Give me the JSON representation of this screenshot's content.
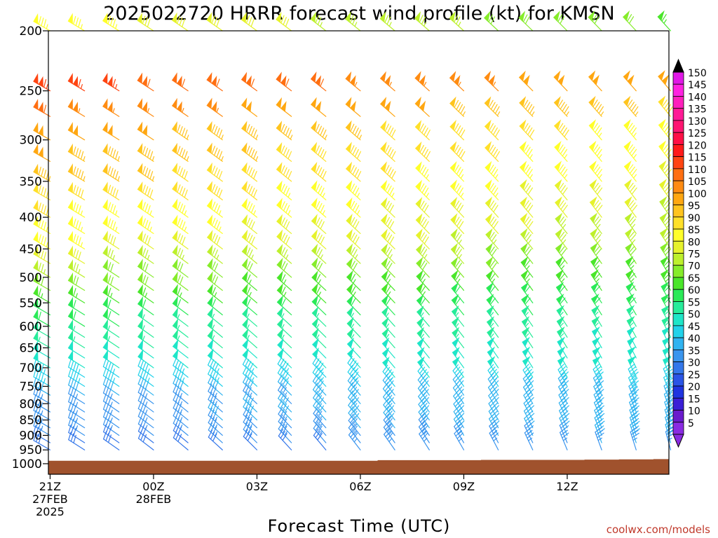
{
  "chart_data": {
    "type": "wind-barb-profile",
    "title": "2025022720 HRRR forecast wind profile (kt) for KMSN",
    "xlabel": "Forecast Time (UTC)",
    "ylabel": "",
    "credit": "coolwx.com/models",
    "x_ticks": [
      {
        "hour": 0,
        "lines": [
          "21Z",
          "27FEB",
          "2025"
        ]
      },
      {
        "hour": 3,
        "lines": [
          "00Z",
          "28FEB"
        ]
      },
      {
        "hour": 6,
        "lines": [
          "03Z"
        ]
      },
      {
        "hour": 9,
        "lines": [
          "06Z"
        ]
      },
      {
        "hour": 12,
        "lines": [
          "09Z"
        ]
      },
      {
        "hour": 15,
        "lines": [
          "12Z"
        ]
      }
    ],
    "x_range_hours": [
      -0.05,
      17.95
    ],
    "forecast_hours": [
      0,
      1,
      2,
      3,
      4,
      5,
      6,
      7,
      8,
      9,
      10,
      11,
      12,
      13,
      14,
      15,
      16,
      17,
      18
    ],
    "y_scale": "pressure (log)",
    "y_range_mb": [
      1040,
      200
    ],
    "y_ticks_mb": [
      200,
      250,
      300,
      350,
      400,
      450,
      500,
      550,
      600,
      650,
      700,
      750,
      800,
      850,
      900,
      950,
      1000
    ],
    "levels_mb": [
      200,
      250,
      275,
      300,
      325,
      350,
      375,
      400,
      425,
      450,
      475,
      500,
      525,
      550,
      575,
      600,
      625,
      650,
      675,
      700,
      725,
      750,
      775,
      800,
      825,
      850,
      875,
      900,
      925,
      950
    ],
    "surface_pressure_mb": [
      989,
      989,
      989,
      989,
      989,
      989,
      989,
      989,
      989,
      989,
      987,
      987,
      987,
      986,
      986,
      986,
      985,
      984,
      983
    ],
    "profile_model": {
      "speed_kt_by_level": [
        [
          200,
          85
        ],
        [
          250,
          115
        ],
        [
          300,
          100
        ],
        [
          350,
          95
        ],
        [
          400,
          88
        ],
        [
          450,
          83
        ],
        [
          500,
          73
        ],
        [
          550,
          66
        ],
        [
          600,
          58
        ],
        [
          650,
          54
        ],
        [
          700,
          50
        ],
        [
          750,
          44
        ],
        [
          800,
          36
        ],
        [
          850,
          36
        ],
        [
          900,
          33
        ],
        [
          950,
          28
        ]
      ],
      "speed_kt_change_per_hour_upper": -1.0,
      "speed_kt_change_per_hour_lower": 0.5,
      "direction_deg_hour0": 300,
      "direction_deg_change_per_hour_upper": 1.0,
      "direction_deg_change_per_hour_lower": 2.5
    },
    "colorbar": {
      "min": 5,
      "max": 150,
      "step": 5,
      "labels": [
        150,
        145,
        140,
        135,
        130,
        125,
        120,
        115,
        110,
        105,
        100,
        95,
        90,
        85,
        80,
        75,
        70,
        65,
        60,
        55,
        50,
        45,
        40,
        35,
        30,
        25,
        20,
        15,
        10,
        5
      ],
      "colors": {
        "5": "#8a2be2",
        "10": "#6a1bcc",
        "15": "#3a1fd6",
        "20": "#1f34e0",
        "25": "#2a55e6",
        "30": "#3477ea",
        "35": "#3a95ee",
        "40": "#30b3f0",
        "45": "#22d2ea",
        "50": "#1fe6c8",
        "55": "#27ec9a",
        "60": "#2bea58",
        "65": "#4ae62a",
        "70": "#86ec2a",
        "75": "#bdf02c",
        "80": "#e6f22c",
        "85": "#ffff2a",
        "90": "#ffe02a",
        "95": "#ffc41e",
        "100": "#ffa712",
        "105": "#ff8c12",
        "110": "#ff6f12",
        "115": "#ff4512",
        "120": "#ff1a1a",
        "125": "#ff1046",
        "130": "#ff1670",
        "135": "#ff1a96",
        "140": "#ff1ebc",
        "145": "#ff22e0",
        "150": "#e01ae6"
      }
    },
    "colors": {
      "ground": "#a0522d",
      "frame": "#000000"
    }
  }
}
